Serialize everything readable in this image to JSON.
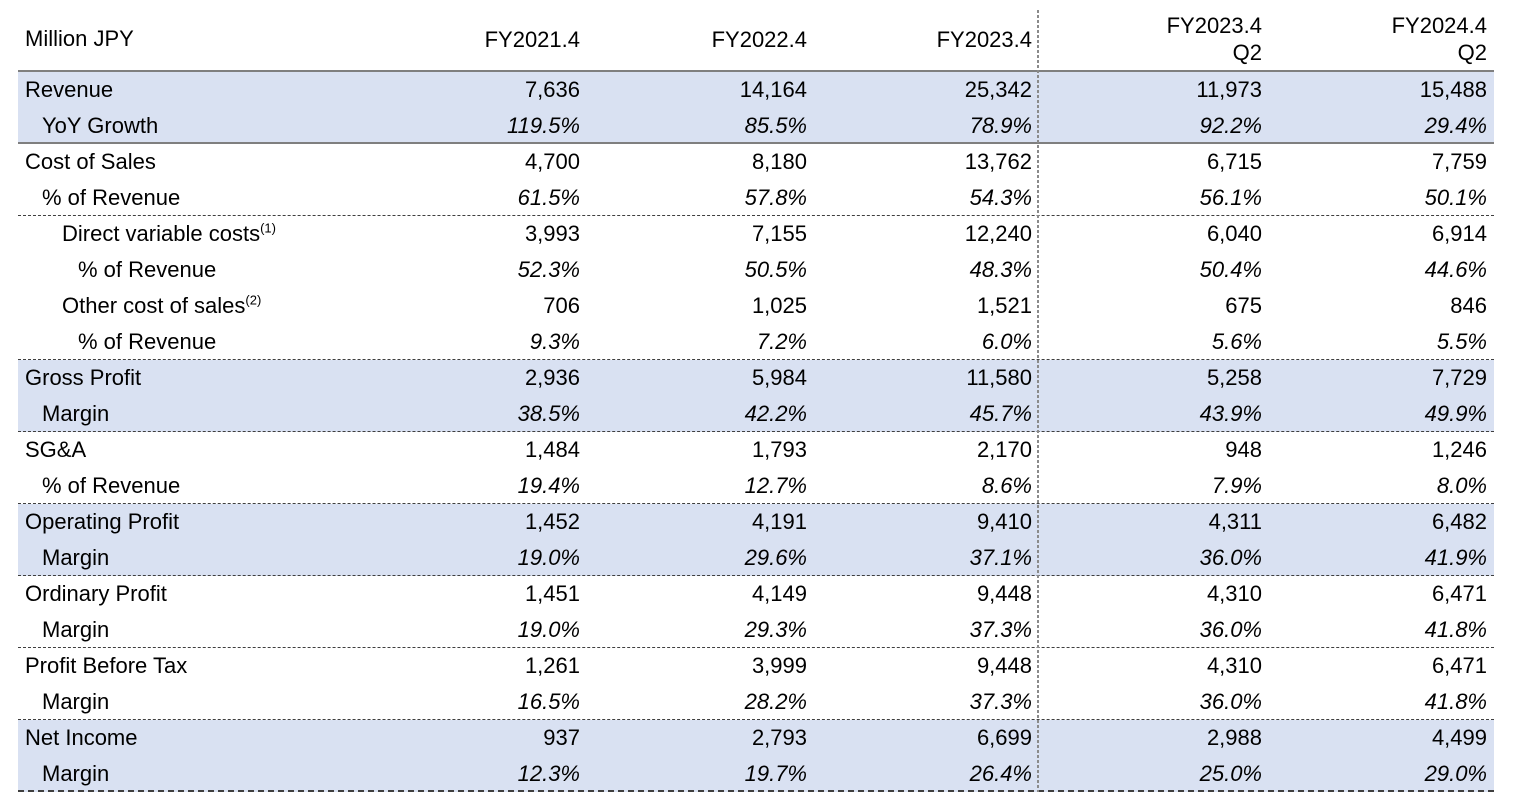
{
  "colors": {
    "highlight": "#d9e1f2",
    "heavy_border": "#7f7f7f",
    "thin_border": "#3f3f3f",
    "divider": "#8a8a8a",
    "text": "#000000"
  },
  "header": {
    "unit_label": "Million JPY",
    "columns": [
      {
        "line1": "FY2021.4",
        "line2": ""
      },
      {
        "line1": "FY2022.4",
        "line2": ""
      },
      {
        "line1": "FY2023.4",
        "line2": ""
      },
      {
        "line1": "FY2023.4",
        "line2": "Q2"
      },
      {
        "line1": "FY2024.4",
        "line2": "Q2"
      }
    ]
  },
  "rows": [
    {
      "label": "Revenue",
      "sup": "",
      "indent": 0,
      "highlight": true,
      "values_italic": false,
      "sep": "",
      "values": [
        "7,636",
        "14,164",
        "25,342",
        "11,973",
        "15,488"
      ]
    },
    {
      "label": "YoY Growth",
      "sup": "",
      "indent": 1,
      "highlight": true,
      "values_italic": true,
      "sep": "thick",
      "values": [
        "119.5%",
        "85.5%",
        "78.9%",
        "92.2%",
        "29.4%"
      ]
    },
    {
      "label": "Cost of Sales",
      "sup": "",
      "indent": 0,
      "highlight": false,
      "values_italic": false,
      "sep": "",
      "values": [
        "4,700",
        "8,180",
        "13,762",
        "6,715",
        "7,759"
      ]
    },
    {
      "label": "% of Revenue",
      "sup": "",
      "indent": 1,
      "highlight": false,
      "values_italic": true,
      "sep": "thin",
      "values": [
        "61.5%",
        "57.8%",
        "54.3%",
        "56.1%",
        "50.1%"
      ]
    },
    {
      "label": "Direct variable costs",
      "sup": "(1)",
      "indent": 2,
      "highlight": false,
      "values_italic": false,
      "sep": "",
      "values": [
        "3,993",
        "7,155",
        "12,240",
        "6,040",
        "6,914"
      ]
    },
    {
      "label": "% of Revenue",
      "sup": "",
      "indent": 3,
      "highlight": false,
      "values_italic": true,
      "sep": "",
      "values": [
        "52.3%",
        "50.5%",
        "48.3%",
        "50.4%",
        "44.6%"
      ]
    },
    {
      "label": "Other cost of sales",
      "sup": "(2)",
      "indent": 2,
      "highlight": false,
      "values_italic": false,
      "sep": "",
      "values": [
        "706",
        "1,025",
        "1,521",
        "675",
        "846"
      ]
    },
    {
      "label": "% of Revenue",
      "sup": "",
      "indent": 3,
      "highlight": false,
      "values_italic": true,
      "sep": "thin",
      "values": [
        "9.3%",
        "7.2%",
        "6.0%",
        "5.6%",
        "5.5%"
      ]
    },
    {
      "label": "Gross Profit",
      "sup": "",
      "indent": 0,
      "highlight": true,
      "values_italic": false,
      "sep": "",
      "values": [
        "2,936",
        "5,984",
        "11,580",
        "5,258",
        "7,729"
      ]
    },
    {
      "label": "Margin",
      "sup": "",
      "indent": 1,
      "highlight": true,
      "values_italic": true,
      "sep": "thin",
      "values": [
        "38.5%",
        "42.2%",
        "45.7%",
        "43.9%",
        "49.9%"
      ]
    },
    {
      "label": "SG&A",
      "sup": "",
      "indent": 0,
      "highlight": false,
      "values_italic": false,
      "sep": "",
      "values": [
        "1,484",
        "1,793",
        "2,170",
        "948",
        "1,246"
      ]
    },
    {
      "label": "% of Revenue",
      "sup": "",
      "indent": 1,
      "highlight": false,
      "values_italic": true,
      "sep": "thin",
      "values": [
        "19.4%",
        "12.7%",
        "8.6%",
        "7.9%",
        "8.0%"
      ]
    },
    {
      "label": "Operating Profit",
      "sup": "",
      "indent": 0,
      "highlight": true,
      "values_italic": false,
      "sep": "",
      "values": [
        "1,452",
        "4,191",
        "9,410",
        "4,311",
        "6,482"
      ]
    },
    {
      "label": "Margin",
      "sup": "",
      "indent": 1,
      "highlight": true,
      "values_italic": true,
      "sep": "thin",
      "values": [
        "19.0%",
        "29.6%",
        "37.1%",
        "36.0%",
        "41.9%"
      ]
    },
    {
      "label": "Ordinary Profit",
      "sup": "",
      "indent": 0,
      "highlight": false,
      "values_italic": false,
      "sep": "",
      "values": [
        "1,451",
        "4,149",
        "9,448",
        "4,310",
        "6,471"
      ]
    },
    {
      "label": "Margin",
      "sup": "",
      "indent": 1,
      "highlight": false,
      "values_italic": true,
      "sep": "thin",
      "values": [
        "19.0%",
        "29.3%",
        "37.3%",
        "36.0%",
        "41.8%"
      ]
    },
    {
      "label": "Profit Before Tax",
      "sup": "",
      "indent": 0,
      "highlight": false,
      "values_italic": false,
      "sep": "",
      "values": [
        "1,261",
        "3,999",
        "9,448",
        "4,310",
        "6,471"
      ]
    },
    {
      "label": "Margin",
      "sup": "",
      "indent": 1,
      "highlight": false,
      "values_italic": true,
      "sep": "thin",
      "values": [
        "16.5%",
        "28.2%",
        "37.3%",
        "36.0%",
        "41.8%"
      ]
    },
    {
      "label": "Net Income",
      "sup": "",
      "indent": 0,
      "highlight": true,
      "values_italic": false,
      "sep": "",
      "values": [
        "937",
        "2,793",
        "6,699",
        "2,988",
        "4,499"
      ]
    },
    {
      "label": "Margin",
      "sup": "",
      "indent": 1,
      "highlight": true,
      "values_italic": true,
      "sep": "bottom",
      "values": [
        "12.3%",
        "19.7%",
        "26.4%",
        "25.0%",
        "29.0%"
      ]
    }
  ]
}
